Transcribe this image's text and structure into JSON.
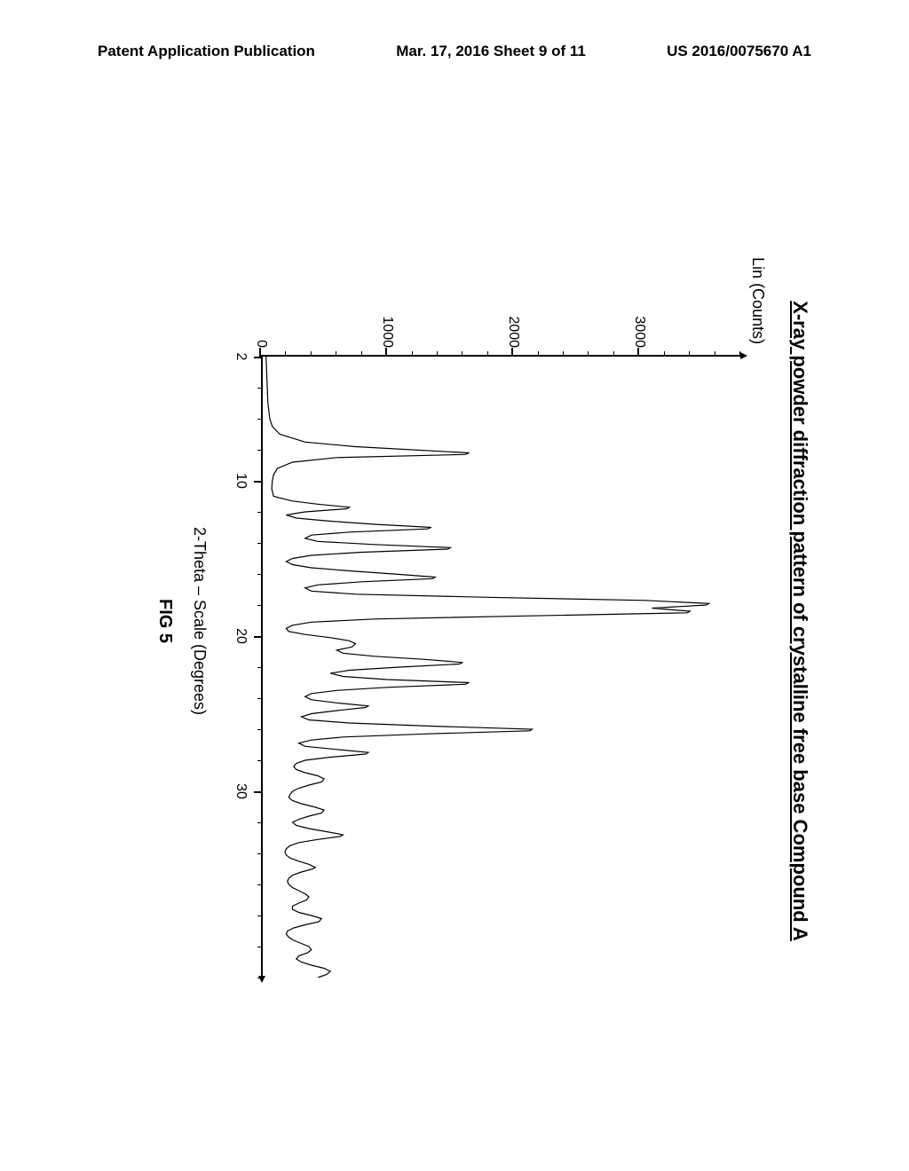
{
  "header": {
    "left": "Patent Application Publication",
    "center": "Mar. 17, 2016  Sheet 9 of 11",
    "right": "US 2016/0075670 A1"
  },
  "chart": {
    "type": "line",
    "title": "X-ray powder diffraction pattern of crystalline free base Compound A",
    "xlabel": "2-Theta – Scale (Degrees)",
    "ylabel": "Lin (Counts)",
    "caption": "FIG 5",
    "xlim": [
      2,
      42
    ],
    "ylim": [
      0,
      3800
    ],
    "x_major_ticks": [
      2,
      10,
      20,
      30
    ],
    "x_minor_step": 2,
    "y_major_ticks": [
      0,
      1000,
      2000,
      3000
    ],
    "y_minor_step": 200,
    "line_color": "#000000",
    "background_color": "#ffffff",
    "title_fontsize": 22,
    "label_fontsize": 18,
    "tick_fontsize": 16,
    "data": [
      [
        2,
        40
      ],
      [
        3,
        45
      ],
      [
        4,
        50
      ],
      [
        5,
        55
      ],
      [
        6,
        70
      ],
      [
        6.5,
        90
      ],
      [
        7,
        150
      ],
      [
        7.5,
        350
      ],
      [
        7.8,
        750
      ],
      [
        8.2,
        1650
      ],
      [
        8.3,
        1620
      ],
      [
        8.5,
        600
      ],
      [
        8.8,
        250
      ],
      [
        9.2,
        130
      ],
      [
        9.6,
        100
      ],
      [
        10,
        90
      ],
      [
        10.5,
        85
      ],
      [
        11,
        100
      ],
      [
        11.3,
        250
      ],
      [
        11.5,
        450
      ],
      [
        11.7,
        700
      ],
      [
        11.8,
        680
      ],
      [
        12,
        350
      ],
      [
        12.2,
        200
      ],
      [
        12.4,
        280
      ],
      [
        12.6,
        550
      ],
      [
        12.8,
        900
      ],
      [
        13,
        1350
      ],
      [
        13.1,
        1320
      ],
      [
        13.3,
        700
      ],
      [
        13.5,
        400
      ],
      [
        13.7,
        350
      ],
      [
        13.9,
        450
      ],
      [
        14.1,
        900
      ],
      [
        14.3,
        1500
      ],
      [
        14.4,
        1480
      ],
      [
        14.6,
        800
      ],
      [
        14.8,
        400
      ],
      [
        15,
        250
      ],
      [
        15.2,
        200
      ],
      [
        15.4,
        250
      ],
      [
        15.6,
        400
      ],
      [
        15.8,
        700
      ],
      [
        16,
        1050
      ],
      [
        16.2,
        1380
      ],
      [
        16.3,
        1360
      ],
      [
        16.5,
        800
      ],
      [
        16.7,
        450
      ],
      [
        16.9,
        350
      ],
      [
        17.1,
        400
      ],
      [
        17.3,
        750
      ],
      [
        17.5,
        1800
      ],
      [
        17.7,
        3050
      ],
      [
        17.9,
        3550
      ],
      [
        18,
        3530
      ],
      [
        18.2,
        3100
      ],
      [
        18.4,
        3400
      ],
      [
        18.5,
        3380
      ],
      [
        18.7,
        2100
      ],
      [
        18.9,
        900
      ],
      [
        19.1,
        400
      ],
      [
        19.3,
        250
      ],
      [
        19.5,
        200
      ],
      [
        19.7,
        220
      ],
      [
        19.9,
        350
      ],
      [
        20.1,
        550
      ],
      [
        20.3,
        700
      ],
      [
        20.5,
        750
      ],
      [
        20.7,
        720
      ],
      [
        20.9,
        600
      ],
      [
        21.1,
        650
      ],
      [
        21.3,
        900
      ],
      [
        21.5,
        1300
      ],
      [
        21.7,
        1600
      ],
      [
        21.8,
        1570
      ],
      [
        22,
        1100
      ],
      [
        22.2,
        700
      ],
      [
        22.4,
        550
      ],
      [
        22.6,
        650
      ],
      [
        22.8,
        1000
      ],
      [
        23,
        1650
      ],
      [
        23.1,
        1620
      ],
      [
        23.3,
        1000
      ],
      [
        23.5,
        600
      ],
      [
        23.7,
        400
      ],
      [
        23.9,
        350
      ],
      [
        24.1,
        400
      ],
      [
        24.3,
        600
      ],
      [
        24.5,
        850
      ],
      [
        24.6,
        830
      ],
      [
        24.8,
        600
      ],
      [
        25,
        400
      ],
      [
        25.2,
        320
      ],
      [
        25.4,
        380
      ],
      [
        25.6,
        700
      ],
      [
        25.8,
        1350
      ],
      [
        26,
        2150
      ],
      [
        26.1,
        2130
      ],
      [
        26.3,
        1300
      ],
      [
        26.5,
        650
      ],
      [
        26.7,
        400
      ],
      [
        26.9,
        300
      ],
      [
        27.1,
        350
      ],
      [
        27.3,
        600
      ],
      [
        27.5,
        850
      ],
      [
        27.6,
        830
      ],
      [
        27.8,
        550
      ],
      [
        28,
        350
      ],
      [
        28.2,
        280
      ],
      [
        28.4,
        260
      ],
      [
        28.6,
        280
      ],
      [
        28.8,
        350
      ],
      [
        29,
        450
      ],
      [
        29.2,
        500
      ],
      [
        29.4,
        480
      ],
      [
        29.6,
        380
      ],
      [
        29.8,
        300
      ],
      [
        30,
        250
      ],
      [
        30.2,
        230
      ],
      [
        30.4,
        220
      ],
      [
        30.6,
        250
      ],
      [
        30.8,
        320
      ],
      [
        31,
        420
      ],
      [
        31.2,
        500
      ],
      [
        31.4,
        480
      ],
      [
        31.6,
        380
      ],
      [
        31.8,
        300
      ],
      [
        32,
        250
      ],
      [
        32.2,
        280
      ],
      [
        32.4,
        380
      ],
      [
        32.6,
        520
      ],
      [
        32.8,
        650
      ],
      [
        32.9,
        630
      ],
      [
        33.1,
        450
      ],
      [
        33.3,
        300
      ],
      [
        33.5,
        230
      ],
      [
        33.7,
        200
      ],
      [
        33.9,
        190
      ],
      [
        34.1,
        200
      ],
      [
        34.3,
        230
      ],
      [
        34.5,
        300
      ],
      [
        34.7,
        380
      ],
      [
        34.9,
        430
      ],
      [
        35,
        410
      ],
      [
        35.2,
        320
      ],
      [
        35.4,
        250
      ],
      [
        35.6,
        220
      ],
      [
        35.8,
        210
      ],
      [
        36,
        220
      ],
      [
        36.2,
        250
      ],
      [
        36.4,
        300
      ],
      [
        36.6,
        350
      ],
      [
        36.8,
        380
      ],
      [
        37,
        360
      ],
      [
        37.2,
        300
      ],
      [
        37.4,
        250
      ],
      [
        37.6,
        250
      ],
      [
        37.8,
        300
      ],
      [
        38,
        400
      ],
      [
        38.2,
        480
      ],
      [
        38.4,
        460
      ],
      [
        38.6,
        350
      ],
      [
        38.8,
        260
      ],
      [
        39,
        210
      ],
      [
        39.2,
        200
      ],
      [
        39.4,
        220
      ],
      [
        39.6,
        260
      ],
      [
        39.8,
        320
      ],
      [
        40,
        380
      ],
      [
        40.2,
        400
      ],
      [
        40.4,
        370
      ],
      [
        40.6,
        300
      ],
      [
        40.8,
        280
      ],
      [
        41,
        320
      ],
      [
        41.2,
        400
      ],
      [
        41.4,
        500
      ],
      [
        41.6,
        550
      ],
      [
        41.8,
        520
      ],
      [
        42,
        450
      ]
    ]
  }
}
